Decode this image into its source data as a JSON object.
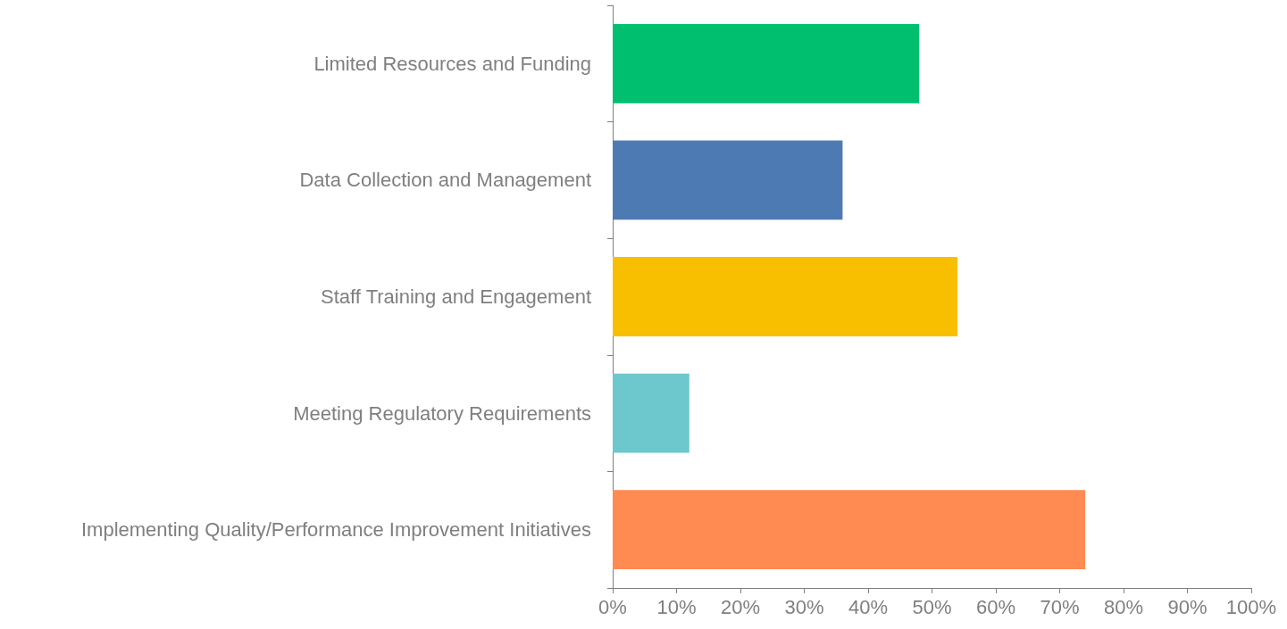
{
  "chart_data": {
    "type": "bar",
    "orientation": "horizontal",
    "categories": [
      "Limited Resources and Funding",
      "Data Collection and Management",
      "Staff Training and Engagement",
      "Meeting Regulatory Requirements",
      "Implementing Quality/Performance Improvement Initiatives"
    ],
    "values": [
      48,
      36,
      54,
      12,
      74
    ],
    "colors": [
      "#00bf6f",
      "#4e7ab3",
      "#f8bf00",
      "#6cc8cc",
      "#ff8b52"
    ],
    "xlim": [
      0,
      100
    ],
    "xticks": [
      {
        "value": 0,
        "label": "0%"
      },
      {
        "value": 10,
        "label": "10%"
      },
      {
        "value": 20,
        "label": "20%"
      },
      {
        "value": 30,
        "label": "30%"
      },
      {
        "value": 40,
        "label": "40%"
      },
      {
        "value": 50,
        "label": "50%"
      },
      {
        "value": 60,
        "label": "60%"
      },
      {
        "value": 70,
        "label": "70%"
      },
      {
        "value": 80,
        "label": "80%"
      },
      {
        "value": 90,
        "label": "90%"
      },
      {
        "value": 100,
        "label": "100%"
      }
    ],
    "grid": false
  }
}
